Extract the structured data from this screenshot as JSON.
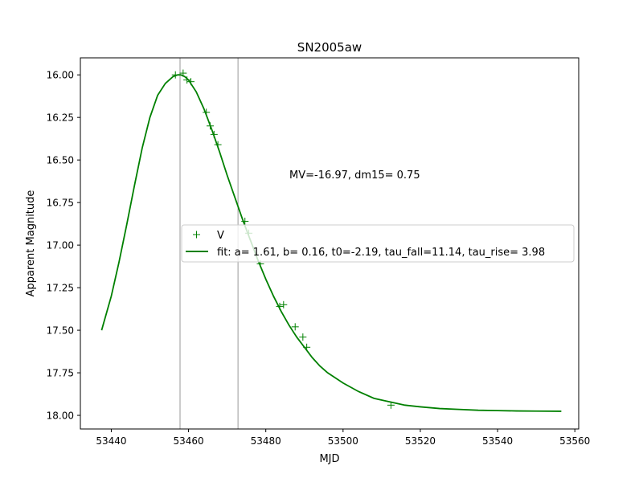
{
  "chart_data": {
    "type": "scatter",
    "title": "SN2005aw",
    "xlabel": "MJD",
    "ylabel": "Apparent Magnitude",
    "xlim": [
      53432.0,
      53561.0
    ],
    "ylim": [
      18.08,
      15.9
    ],
    "y_inverted": true,
    "x_ticks": [
      53440,
      53460,
      53480,
      53500,
      53520,
      53540,
      53560
    ],
    "y_ticks": [
      16.0,
      16.25,
      16.5,
      16.75,
      17.0,
      17.25,
      17.5,
      17.75,
      18.0
    ],
    "x_tick_labels": [
      "53440",
      "53460",
      "53480",
      "53500",
      "53520",
      "53540",
      "53560"
    ],
    "y_tick_labels": [
      "16.00",
      "16.25",
      "16.50",
      "16.75",
      "17.00",
      "17.25",
      "17.50",
      "17.75",
      "18.00"
    ],
    "vertical_lines": [
      53457.8,
      53472.8
    ],
    "annotation": "MV=-16.97, dm15= 0.75",
    "legend_placement": "center-right",
    "series": [
      {
        "name": "V",
        "kind": "points",
        "marker": "plus",
        "color": "#008000",
        "x": [
          53456.6,
          53458.6,
          53459.6,
          53460.6,
          53464.6,
          53465.6,
          53466.6,
          53467.6,
          53474.6,
          53475.6,
          53478.6,
          53483.6,
          53484.6,
          53487.6,
          53489.6,
          53490.6,
          53512.4
        ],
        "y": [
          16.0,
          15.99,
          16.03,
          16.04,
          16.22,
          16.3,
          16.35,
          16.41,
          16.86,
          16.93,
          17.11,
          17.36,
          17.35,
          17.48,
          17.54,
          17.6,
          17.94
        ]
      },
      {
        "name": "fit: a= 1.61, b= 0.16, t0=-2.19, tau_fall=11.14, tau_rise= 3.98",
        "kind": "line",
        "color": "#008000",
        "x": [
          53437.5,
          53440,
          53442,
          53444,
          53446,
          53448,
          53450,
          53452,
          53454,
          53456,
          53457.2,
          53458,
          53459,
          53460,
          53462,
          53464,
          53466,
          53468,
          53470,
          53472,
          53474,
          53476,
          53478,
          53480,
          53482,
          53484,
          53486,
          53488,
          53490,
          53492,
          53494,
          53496,
          53498,
          53500,
          53504,
          53508,
          53512,
          53516,
          53520,
          53525,
          53530,
          53535,
          53540,
          53545,
          53550,
          53556.5
        ],
        "y": [
          17.5,
          17.3,
          17.1,
          16.88,
          16.65,
          16.43,
          16.25,
          16.12,
          16.05,
          16.01,
          16.0,
          16.0,
          16.01,
          16.03,
          16.1,
          16.2,
          16.32,
          16.45,
          16.59,
          16.72,
          16.85,
          16.97,
          17.09,
          17.2,
          17.3,
          17.39,
          17.47,
          17.54,
          17.6,
          17.66,
          17.71,
          17.75,
          17.78,
          17.81,
          17.86,
          17.9,
          17.92,
          17.94,
          17.95,
          17.96,
          17.965,
          17.97,
          17.972,
          17.974,
          17.975,
          17.976
        ]
      }
    ]
  },
  "colors": {
    "series": "#008000",
    "vline": "#808080",
    "axis": "#000000"
  }
}
